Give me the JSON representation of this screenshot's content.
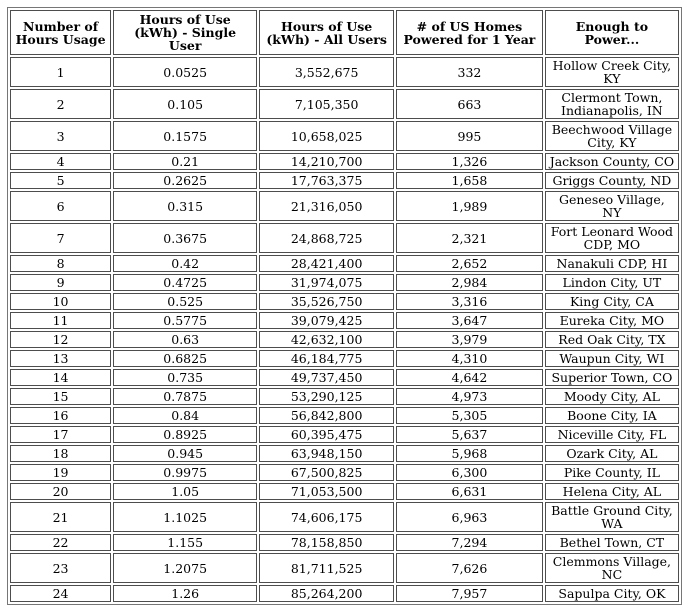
{
  "chart_data": {
    "type": "table",
    "title": "",
    "columns": [
      "Number of Hours Usage",
      "Hours of Use (kWh) - Single User",
      "Hours of Use (kWh) - All Users",
      "# of US Homes Powered for 1 Year",
      "Enough to Power..."
    ],
    "rows": [
      [
        "1",
        "0.0525",
        "3,552,675",
        "332",
        "Hollow Creek City, KY"
      ],
      [
        "2",
        "0.105",
        "7,105,350",
        "663",
        "Clermont Town, Indianapolis, IN"
      ],
      [
        "3",
        "0.1575",
        "10,658,025",
        "995",
        "Beechwood Village City, KY"
      ],
      [
        "4",
        "0.21",
        "14,210,700",
        "1,326",
        "Jackson County, CO"
      ],
      [
        "5",
        "0.2625",
        "17,763,375",
        "1,658",
        "Griggs County, ND"
      ],
      [
        "6",
        "0.315",
        "21,316,050",
        "1,989",
        "Geneseo Village, NY"
      ],
      [
        "7",
        "0.3675",
        "24,868,725",
        "2,321",
        "Fort Leonard Wood CDP, MO"
      ],
      [
        "8",
        "0.42",
        "28,421,400",
        "2,652",
        "Nanakuli CDP, HI"
      ],
      [
        "9",
        "0.4725",
        "31,974,075",
        "2,984",
        "Lindon City, UT"
      ],
      [
        "10",
        "0.525",
        "35,526,750",
        "3,316",
        "King City, CA"
      ],
      [
        "11",
        "0.5775",
        "39,079,425",
        "3,647",
        "Eureka City, MO"
      ],
      [
        "12",
        "0.63",
        "42,632,100",
        "3,979",
        "Red Oak City, TX"
      ],
      [
        "13",
        "0.6825",
        "46,184,775",
        "4,310",
        "Waupun City, WI"
      ],
      [
        "14",
        "0.735",
        "49,737,450",
        "4,642",
        "Superior Town, CO"
      ],
      [
        "15",
        "0.7875",
        "53,290,125",
        "4,973",
        "Moody City, AL"
      ],
      [
        "16",
        "0.84",
        "56,842,800",
        "5,305",
        "Boone City, IA"
      ],
      [
        "17",
        "0.8925",
        "60,395,475",
        "5,637",
        "Niceville City, FL"
      ],
      [
        "18",
        "0.945",
        "63,948,150",
        "5,968",
        "Ozark City, AL"
      ],
      [
        "19",
        "0.9975",
        "67,500,825",
        "6,300",
        "Pike County, IL"
      ],
      [
        "20",
        "1.05",
        "71,053,500",
        "6,631",
        "Helena City, AL"
      ],
      [
        "21",
        "1.1025",
        "74,606,175",
        "6,963",
        "Battle Ground City, WA"
      ],
      [
        "22",
        "1.155",
        "78,158,850",
        "7,294",
        "Bethel Town, CT"
      ],
      [
        "23",
        "1.2075",
        "81,711,525",
        "7,626",
        "Clemmons Village, NC"
      ],
      [
        "24",
        "1.26",
        "85,264,200",
        "7,957",
        "Sapulpa City, OK"
      ]
    ]
  },
  "colors": {
    "background": "#ffffff",
    "text": "#000000",
    "cell_border": "#4d4d4d",
    "frame_border": "#767676"
  }
}
